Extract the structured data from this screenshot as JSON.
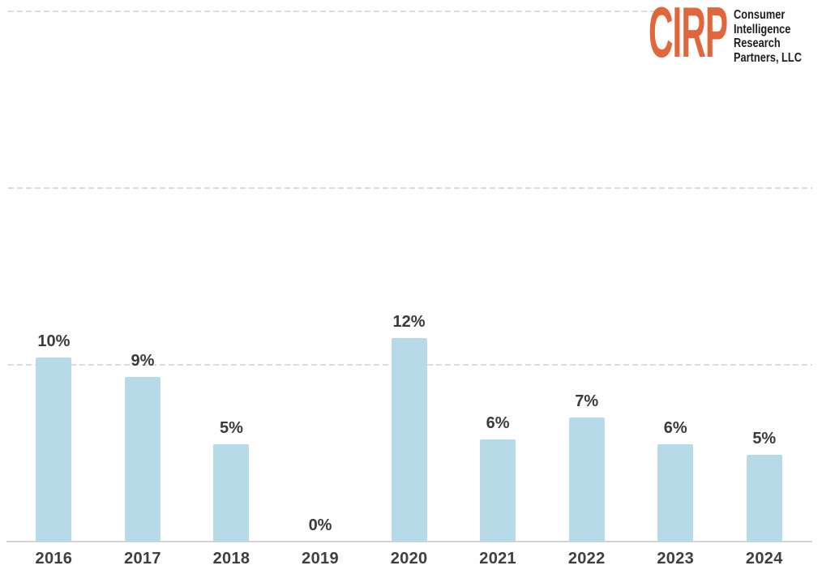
{
  "page": {
    "background_color": "#fefefe"
  },
  "logo": {
    "acronym": "CIRP",
    "acronym_color": "#e0663c",
    "lines": [
      "Consumer",
      "Intelligence",
      "Research",
      "Partners, LLC"
    ],
    "text_color": "#1e1e1e"
  },
  "chart_data": {
    "type": "bar",
    "title": "",
    "xlabel": "",
    "ylabel": "",
    "categories": [
      "2016",
      "2017",
      "2018",
      "2019",
      "2020",
      "2021",
      "2022",
      "2023",
      "2024"
    ],
    "values": [
      10,
      9,
      5,
      0,
      12,
      6,
      7,
      6,
      5
    ],
    "data_labels": [
      "10%",
      "9%",
      "5%",
      "0%",
      "12%",
      "6%",
      "7%",
      "6%",
      "5%"
    ],
    "values_precise_pct_estimated": [
      10.4,
      9.3,
      5.5,
      0,
      11.5,
      5.8,
      7.0,
      5.5,
      4.9
    ],
    "ylim": [
      0,
      30
    ],
    "y_axis_tick_labels_visible": false,
    "gridlines": [
      {
        "percent": 10,
        "span": "full"
      },
      {
        "percent": 20,
        "span": "full"
      },
      {
        "percent": 30,
        "span": "stops-before-logo"
      }
    ],
    "grid_style": "dashed horizontal",
    "legend": "none",
    "bar_color": "#b7dae8",
    "label_color": "#3b3b3b",
    "tick_label_color": "#3f3f3f",
    "gridline_color": "#dcdcdc",
    "axis_line_color": "#d2d4d5"
  }
}
